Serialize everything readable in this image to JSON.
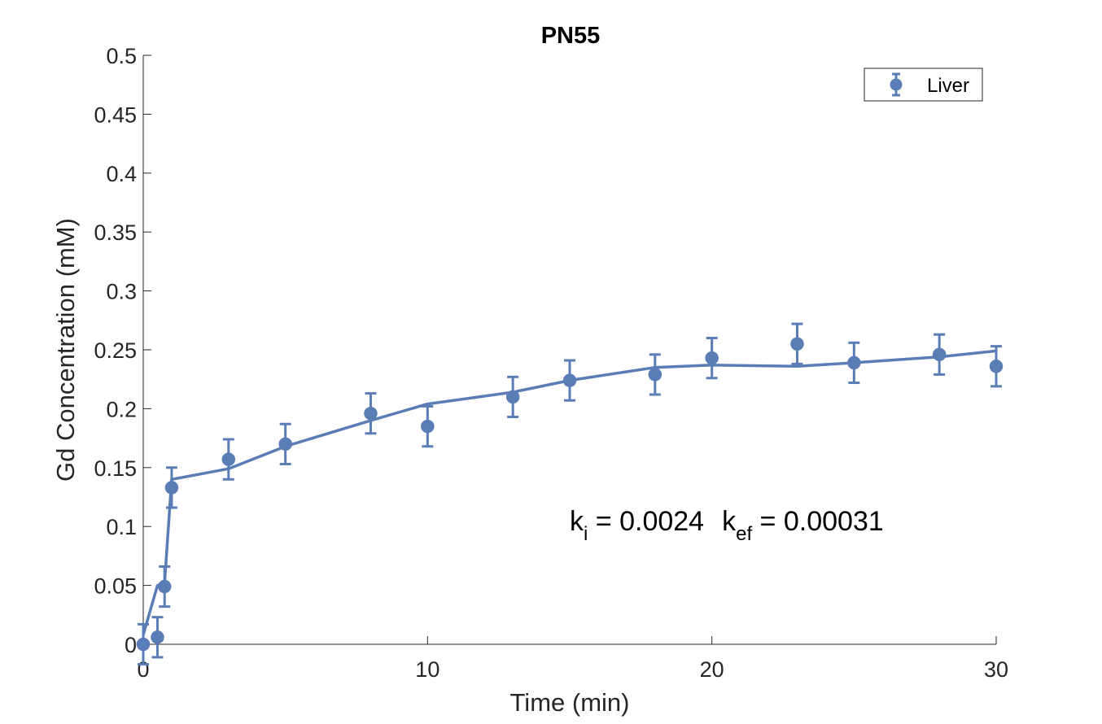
{
  "chart_data": {
    "type": "scatter",
    "title": "PN55",
    "xlabel": "Time (min)",
    "ylabel": "Gd Concentration (mM)",
    "xlim": [
      0,
      30
    ],
    "ylim": [
      0,
      0.5
    ],
    "xticks": [
      0,
      10,
      20,
      30
    ],
    "xtick_labels": [
      "0",
      "10",
      "20",
      "30"
    ],
    "yticks": [
      0,
      0.05,
      0.1,
      0.15,
      0.2,
      0.25,
      0.3,
      0.35,
      0.4,
      0.45,
      0.5
    ],
    "ytick_labels": [
      "0",
      "0.05",
      "0.1",
      "0.15",
      "0.2",
      "0.25",
      "0.3",
      "0.35",
      "0.4",
      "0.45",
      "0.5"
    ],
    "grid": false,
    "legend_position": "top-right",
    "color": "#5b7db6",
    "series": [
      {
        "name": "Liver",
        "x": [
          0,
          0.5,
          0.75,
          1,
          3,
          5,
          8,
          10,
          13,
          15,
          18,
          20,
          23,
          25,
          28,
          30
        ],
        "y": [
          0.0,
          0.006,
          0.049,
          0.133,
          0.157,
          0.17,
          0.196,
          0.185,
          0.21,
          0.224,
          0.229,
          0.243,
          0.255,
          0.239,
          0.246,
          0.236
        ],
        "error": [
          0.017,
          0.017,
          0.017,
          0.017,
          0.017,
          0.017,
          0.017,
          0.017,
          0.017,
          0.017,
          0.017,
          0.017,
          0.017,
          0.017,
          0.017,
          0.017
        ]
      }
    ],
    "fit": {
      "x": [
        0,
        0.5,
        0.75,
        1,
        3,
        5,
        8,
        10,
        13,
        15,
        18,
        20,
        23,
        25,
        28,
        30
      ],
      "y": [
        0.008,
        0.05,
        0.052,
        0.14,
        0.149,
        0.168,
        0.19,
        0.204,
        0.214,
        0.224,
        0.235,
        0.237,
        0.236,
        0.239,
        0.244,
        0.249
      ]
    },
    "annotation": {
      "ki_main": "k",
      "ki_sub": "i",
      "ki_value": " = 0.0024",
      "kef_main": "k",
      "kef_sub": "ef",
      "kef_value": " = 0.00031"
    }
  }
}
